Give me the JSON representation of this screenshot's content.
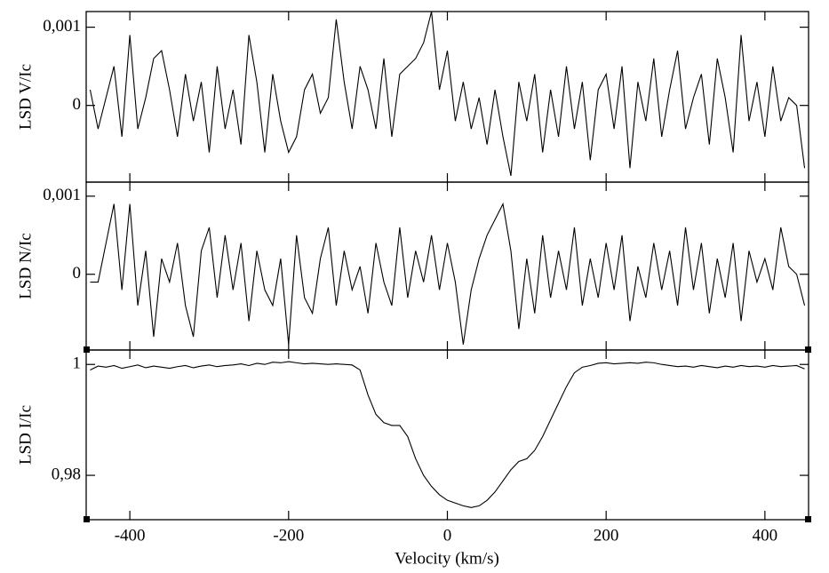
{
  "chart_data": {
    "type": "line",
    "xlabel": "Velocity (km/s)",
    "xlim": [
      -455,
      455
    ],
    "xticks": [
      -400,
      -200,
      0,
      200,
      400
    ],
    "x": [
      -450,
      -440,
      -430,
      -420,
      -410,
      -400,
      -390,
      -380,
      -370,
      -360,
      -350,
      -340,
      -330,
      -320,
      -310,
      -300,
      -290,
      -280,
      -270,
      -260,
      -250,
      -240,
      -230,
      -220,
      -210,
      -200,
      -190,
      -180,
      -170,
      -160,
      -150,
      -140,
      -130,
      -120,
      -110,
      -100,
      -90,
      -80,
      -70,
      -60,
      -50,
      -40,
      -30,
      -20,
      -10,
      0,
      10,
      20,
      30,
      40,
      50,
      60,
      70,
      80,
      90,
      100,
      110,
      120,
      130,
      140,
      150,
      160,
      170,
      180,
      190,
      200,
      210,
      220,
      230,
      240,
      250,
      260,
      270,
      280,
      290,
      300,
      310,
      320,
      330,
      340,
      350,
      360,
      370,
      380,
      390,
      400,
      410,
      420,
      430,
      440,
      450
    ],
    "panels": [
      {
        "ylabel": "LSD V/Ic",
        "ylim": [
          -0.00098,
          0.0012
        ],
        "yticks": [
          {
            "value": 0.001,
            "label": "0,001"
          },
          0
        ],
        "values": [
          0.0002,
          -0.0003,
          0.0001,
          0.0005,
          -0.0004,
          0.0009,
          -0.0003,
          0.0001,
          0.0006,
          0.0007,
          0.0002,
          -0.0004,
          0.0004,
          -0.0002,
          0.0003,
          -0.0006,
          0.0005,
          -0.0003,
          0.0002,
          -0.0005,
          0.0009,
          0.0003,
          -0.0006,
          0.0004,
          -0.0002,
          -0.0006,
          -0.0004,
          0.0002,
          0.0004,
          -0.0001,
          0.0001,
          0.0011,
          0.0003,
          -0.0003,
          0.0005,
          0.0002,
          -0.0003,
          0.0006,
          -0.0004,
          0.0004,
          0.0005,
          0.0006,
          0.0008,
          0.0012,
          0.0002,
          0.0007,
          -0.0002,
          0.0003,
          -0.0003,
          0.0001,
          -0.0005,
          0.0002,
          -0.0004,
          -0.0009,
          0.0003,
          -0.0002,
          0.0004,
          -0.0006,
          0.0002,
          -0.0004,
          0.0005,
          -0.0003,
          0.0003,
          -0.0007,
          0.0002,
          0.0004,
          -0.0003,
          0.0005,
          -0.0008,
          0.0003,
          -0.0002,
          0.0006,
          -0.0004,
          0.0002,
          0.0007,
          -0.0003,
          0.0001,
          0.0004,
          -0.0005,
          0.0006,
          0.0001,
          -0.0006,
          0.0009,
          -0.0002,
          0.0003,
          -0.0004,
          0.0005,
          -0.0002,
          0.0001,
          0,
          -0.0008
        ]
      },
      {
        "ylabel": "LSD N/Ic",
        "ylim": [
          -0.00097,
          0.00118
        ],
        "yticks": [
          {
            "value": 0.001,
            "label": "0,001"
          },
          0
        ],
        "values": [
          -0.0001,
          -0.0001,
          0.0004,
          0.0009,
          -0.0002,
          0.0009,
          -0.0004,
          0.0003,
          -0.0008,
          0.0002,
          -0.0001,
          0.0004,
          -0.0004,
          -0.0008,
          0.0003,
          0.0006,
          -0.0003,
          0.0005,
          -0.0002,
          0.0004,
          -0.0006,
          0.0003,
          -0.0002,
          -0.0004,
          0.0002,
          -0.0009,
          0.0005,
          -0.0003,
          -0.0005,
          0.0002,
          0.0006,
          -0.0004,
          0.0003,
          -0.0002,
          0.0001,
          -0.0005,
          0.0004,
          -0.0001,
          -0.0004,
          0.0006,
          -0.0003,
          0.0003,
          -0.0001,
          0.0005,
          -0.0002,
          0.0004,
          -0.0001,
          -0.0009,
          -0.0002,
          0.0002,
          0.0005,
          0.0007,
          0.0009,
          0.0003,
          -0.0007,
          0.0002,
          -0.0005,
          0.0005,
          -0.0003,
          0.0003,
          -0.0002,
          0.0006,
          -0.0004,
          0.0002,
          -0.0003,
          0.0004,
          -0.0002,
          0.0005,
          -0.0006,
          0.0001,
          -0.0003,
          0.0004,
          -0.0002,
          0.0003,
          -0.0004,
          0.0006,
          -0.0002,
          0.0004,
          -0.0005,
          0.0002,
          -0.0003,
          0.0004,
          -0.0006,
          0.0003,
          -0.0001,
          0.0002,
          -0.0002,
          0.0006,
          0.0001,
          0,
          -0.0004
        ]
      },
      {
        "ylabel": "LSD I/Ic",
        "ylim": [
          0.972,
          1.0026
        ],
        "yticks": [
          1,
          {
            "value": 0.98,
            "label": "0,98"
          }
        ],
        "values": [
          0.999,
          0.9997,
          0.9995,
          0.9998,
          0.9993,
          0.9996,
          0.9999,
          0.9994,
          0.9997,
          0.9995,
          0.9993,
          0.9996,
          0.9998,
          0.9994,
          0.9997,
          0.9999,
          0.9996,
          0.9998,
          0.9999,
          1.0001,
          0.9998,
          1.0002,
          1.0,
          1.0004,
          1.0003,
          1.0005,
          1.0003,
          1.0001,
          1.0002,
          1.0001,
          1.0,
          1.0001,
          1.0,
          0.9999,
          0.999,
          0.9945,
          0.991,
          0.9895,
          0.989,
          0.989,
          0.987,
          0.983,
          0.98,
          0.978,
          0.9765,
          0.9755,
          0.975,
          0.9745,
          0.9742,
          0.9745,
          0.9755,
          0.977,
          0.979,
          0.981,
          0.9825,
          0.983,
          0.9845,
          0.987,
          0.99,
          0.993,
          0.996,
          0.9985,
          0.9995,
          0.9998,
          1.0002,
          1.0003,
          1.0001,
          1.0002,
          1.0003,
          1.0002,
          1.0004,
          1.0003,
          1.0,
          0.9998,
          0.9996,
          0.9997,
          0.9995,
          0.9998,
          0.9996,
          0.9994,
          0.9997,
          0.9995,
          0.9998,
          0.9996,
          0.9997,
          0.9995,
          0.9998,
          0.9996,
          0.9997,
          0.9998,
          0.9992
        ]
      }
    ]
  }
}
